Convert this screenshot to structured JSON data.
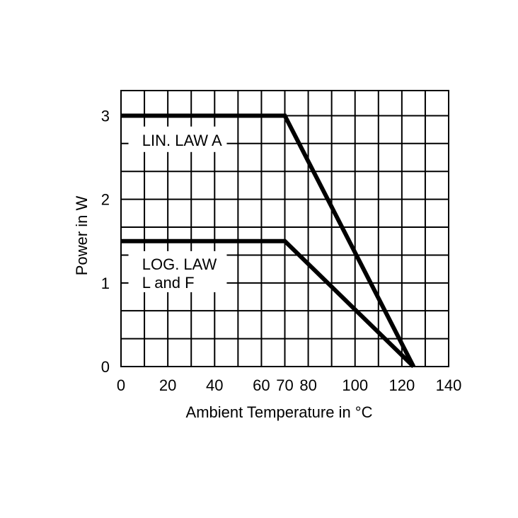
{
  "chart_data": {
    "type": "line",
    "title": "",
    "xlabel": "Ambient Temperature in °C",
    "ylabel": "Power in W",
    "xlim": [
      0,
      140
    ],
    "ylim": [
      0,
      3.3
    ],
    "x_ticks": [
      0,
      20,
      40,
      60,
      70,
      80,
      100,
      120,
      140
    ],
    "y_ticks": [
      0,
      1,
      2,
      3
    ],
    "grid_x": [
      0,
      10,
      20,
      30,
      40,
      50,
      60,
      70,
      80,
      90,
      100,
      110,
      120,
      130,
      140
    ],
    "grid_y": [
      0,
      0.333,
      0.667,
      1,
      1.333,
      1.667,
      2,
      2.333,
      2.667,
      3
    ],
    "grid": true,
    "series": [
      {
        "name": "LIN. LAW A",
        "x": [
          0,
          70,
          125
        ],
        "y": [
          3,
          3,
          0
        ]
      },
      {
        "name": "LOG. LAW L and F",
        "x": [
          0,
          70,
          125
        ],
        "y": [
          1.5,
          1.5,
          0
        ]
      }
    ],
    "annotations": [
      {
        "lines": [
          "LIN. LAW A"
        ]
      },
      {
        "lines": [
          "LOG. LAW",
          "L and F"
        ]
      }
    ]
  }
}
